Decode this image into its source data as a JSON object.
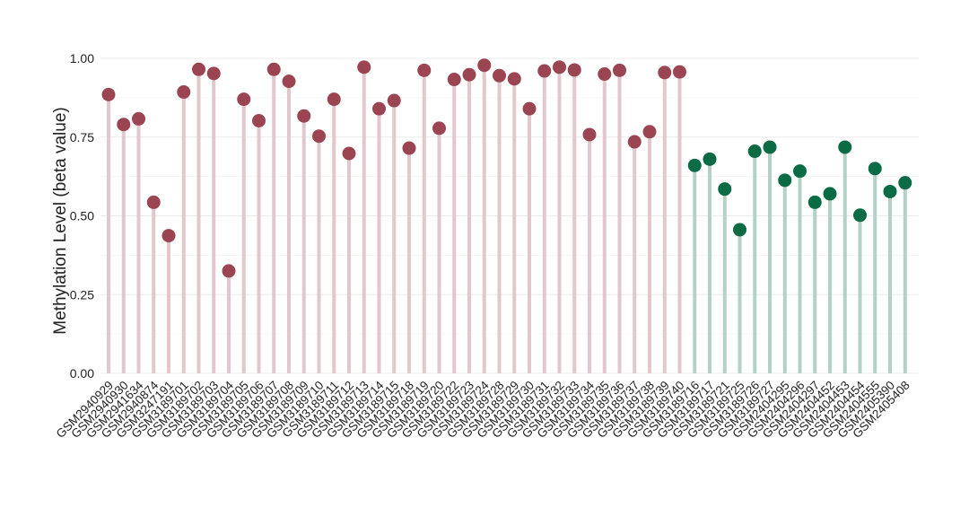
{
  "chart_data": {
    "type": "lollipop",
    "title": "",
    "xlabel": "",
    "ylabel": "Methylation Level (beta value)",
    "ylim": [
      0,
      1
    ],
    "y_ticks": [
      "0.00",
      "0.25",
      "0.50",
      "0.75",
      "1.00"
    ],
    "grid": true,
    "legend": "none",
    "groups": [
      {
        "color": "#9b4452",
        "stem_color": "#e2c8cd",
        "categories": [
          "GSM2940929",
          "GSM2940930",
          "GSM2941634",
          "GSM2940874",
          "GSM3247191",
          "GSM3189701",
          "GSM3189702",
          "GSM3189703",
          "GSM3189704",
          "GSM3189705",
          "GSM3189706",
          "GSM3189707",
          "GSM3189708",
          "GSM3189709",
          "GSM3189710",
          "GSM3189711",
          "GSM3189712",
          "GSM3189713",
          "GSM3189714",
          "GSM3189715",
          "GSM3189718",
          "GSM3189719",
          "GSM3189720",
          "GSM3189722",
          "GSM3189723",
          "GSM3189724",
          "GSM3189728",
          "GSM3189729",
          "GSM3189730",
          "GSM3189731",
          "GSM3189732",
          "GSM3189733",
          "GSM3189734",
          "GSM3189735",
          "GSM3189736",
          "GSM3189737",
          "GSM3189738",
          "GSM3189739",
          "GSM3189740"
        ],
        "values": [
          0.885,
          0.79,
          0.808,
          0.543,
          0.437,
          0.893,
          0.965,
          0.952,
          0.325,
          0.87,
          0.802,
          0.965,
          0.927,
          0.817,
          0.753,
          0.87,
          0.698,
          0.972,
          0.84,
          0.866,
          0.715,
          0.962,
          0.778,
          0.933,
          0.948,
          0.978,
          0.945,
          0.935,
          0.84,
          0.96,
          0.972,
          0.963,
          0.758,
          0.95,
          0.962,
          0.735,
          0.767,
          0.955,
          0.957
        ]
      },
      {
        "color": "#0b6b45",
        "stem_color": "#b2d2c5",
        "categories": [
          "GSM3189716",
          "GSM3189717",
          "GSM3189721",
          "GSM3189725",
          "GSM3189726",
          "GSM3189727",
          "GSM2404295",
          "GSM2404296",
          "GSM2404297",
          "GSM2404452",
          "GSM2404453",
          "GSM2404454",
          "GSM2404555",
          "GSM2405390",
          "GSM2405408"
        ],
        "values": [
          0.66,
          0.68,
          0.585,
          0.456,
          0.705,
          0.718,
          0.613,
          0.642,
          0.543,
          0.57,
          0.718,
          0.502,
          0.65,
          0.577,
          0.605
        ]
      }
    ]
  }
}
